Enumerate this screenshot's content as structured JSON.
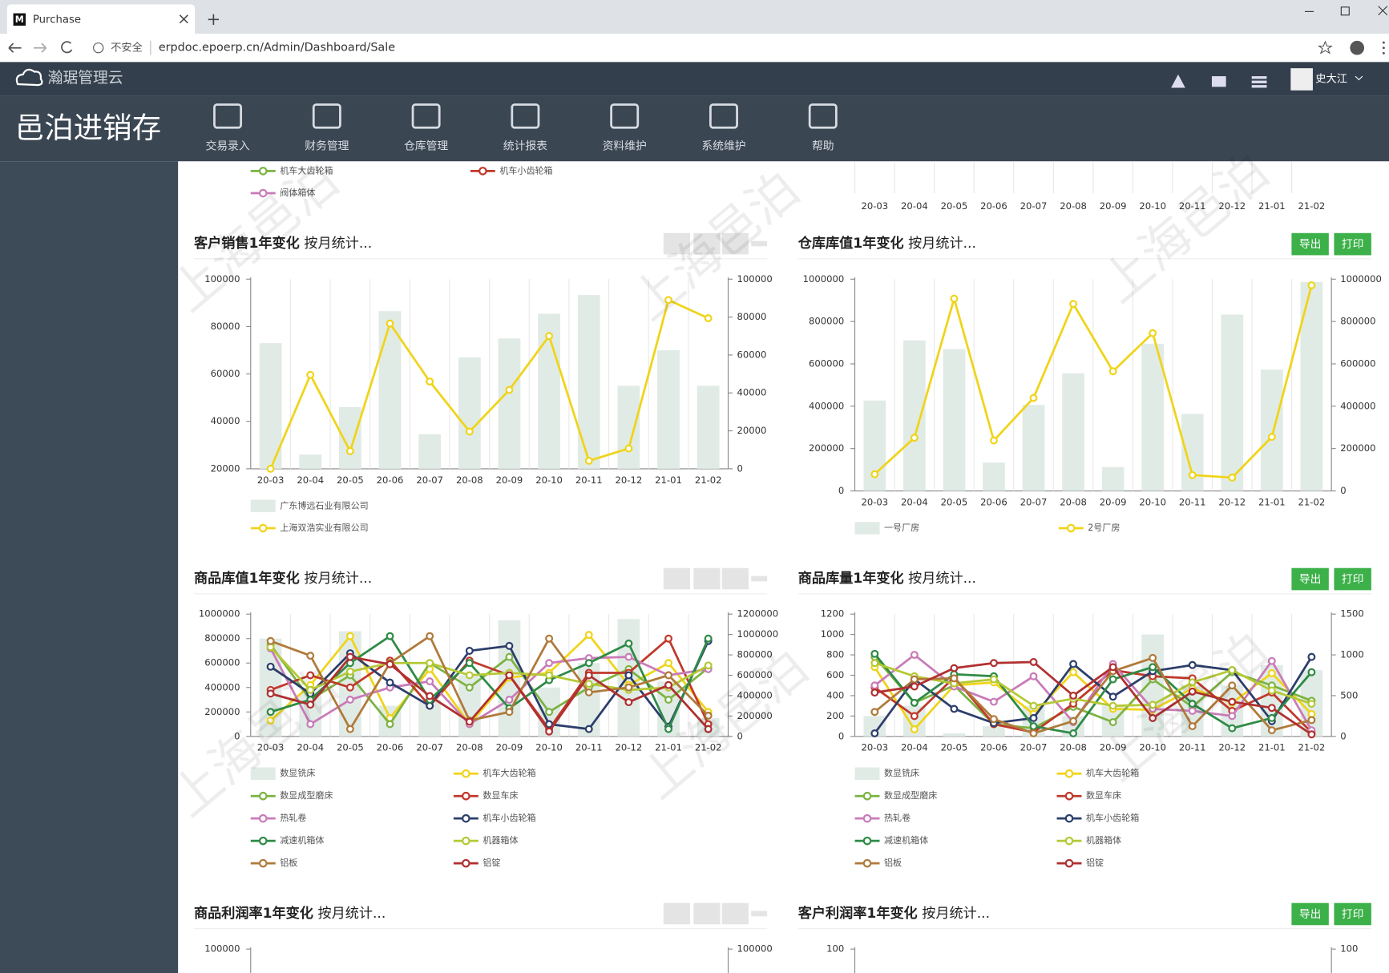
{
  "browser": {
    "tab_title": "Purchase",
    "security": "不安全",
    "url": "erpdoc.epoerp.cn/Admin/Dashboard/Sale"
  },
  "header": {
    "brand": "瀚琚管理云",
    "user": "史大江"
  },
  "app_title": "邑泊进销存",
  "nav": [
    "交易录入",
    "财务管理",
    "仓库管理",
    "统计报表",
    "资料维护",
    "系统维护",
    "帮助"
  ],
  "watermark": "上海邑泊",
  "buttons": [
    "导出",
    "打印"
  ],
  "top_fragment": {
    "legend": [
      {
        "name": "机车大齿轮箱",
        "color": "#7cb342"
      },
      {
        "name": "机车小齿轮箱",
        "color": "#c0392b"
      },
      {
        "name": "阀体箱体",
        "color": "#c97bb8"
      }
    ],
    "categories": [
      "20-03",
      "20-04",
      "20-05",
      "20-06",
      "20-07",
      "20-08",
      "20-09",
      "20-10",
      "20-11",
      "20-12",
      "21-01",
      "21-02"
    ]
  },
  "chart_data": [
    {
      "type": "combo",
      "title": "客户销售1年变化",
      "subtitle": "按月统计...",
      "grid": true,
      "categories": [
        "20-03",
        "20-04",
        "20-05",
        "20-06",
        "20-07",
        "20-08",
        "20-09",
        "20-10",
        "20-11",
        "20-12",
        "21-01",
        "21-02"
      ],
      "ylim": [
        20000,
        100000
      ],
      "yticks": [
        20000,
        40000,
        60000,
        80000,
        100000
      ],
      "y2lim": [
        0,
        100000
      ],
      "y2ticks": [
        0,
        20000,
        40000,
        60000,
        80000,
        100000
      ],
      "series": [
        {
          "name": "广东博远石业有限公司",
          "color": "#e1ebe6",
          "kind": "bar",
          "values": [
            73000,
            26000,
            46000,
            86500,
            34600,
            67000,
            75000,
            85400,
            93300,
            55000,
            70000,
            55000
          ]
        },
        {
          "name": "上海双浩实业有限公司",
          "color": "#f0d41a",
          "kind": "line",
          "axis": "y2",
          "values": [
            0,
            49500,
            9300,
            76600,
            46000,
            19600,
            41600,
            70000,
            4200,
            10700,
            89000,
            79400
          ]
        }
      ]
    },
    {
      "type": "combo",
      "title": "仓库库值1年变化",
      "subtitle": "按月统计...",
      "grid": true,
      "categories": [
        "20-03",
        "20-04",
        "20-05",
        "20-06",
        "20-07",
        "20-08",
        "20-09",
        "20-10",
        "20-11",
        "20-12",
        "21-01",
        "21-02"
      ],
      "ylim": [
        0,
        1000000
      ],
      "yticks": [
        0,
        200000,
        400000,
        600000,
        800000,
        1000000
      ],
      "y2lim": [
        0,
        1000000
      ],
      "y2ticks": [
        0,
        200000,
        400000,
        600000,
        800000,
        1000000
      ],
      "series": [
        {
          "name": "一号厂房",
          "color": "#e1ebe6",
          "kind": "bar",
          "values": [
            427000,
            711000,
            670000,
            134000,
            406000,
            556000,
            113000,
            695000,
            364000,
            833000,
            573000,
            987000
          ]
        },
        {
          "name": "2号厂房",
          "color": "#f0d41a",
          "kind": "line",
          "axis": "y2",
          "values": [
            79000,
            251000,
            908000,
            238000,
            439000,
            883000,
            565000,
            745000,
            75000,
            63000,
            255000,
            971000
          ]
        }
      ]
    },
    {
      "type": "combo",
      "title": "商品库值1年变化",
      "subtitle": "按月统计...",
      "grid": true,
      "categories": [
        "20-03",
        "20-04",
        "20-05",
        "20-06",
        "20-07",
        "20-08",
        "20-09",
        "20-10",
        "20-11",
        "20-12",
        "21-01",
        "21-02"
      ],
      "ylim": [
        0,
        1000000
      ],
      "yticks": [
        0,
        200000,
        400000,
        600000,
        800000,
        1000000
      ],
      "y2lim": [
        0,
        1200000
      ],
      "y2ticks": [
        0,
        200000,
        400000,
        600000,
        800000,
        1000000,
        1200000
      ],
      "series": [
        {
          "name": "数显铣床",
          "color": "#e1ebe6",
          "kind": "bar",
          "values": [
            800000,
            350000,
            860000,
            250000,
            300000,
            500000,
            950000,
            400000,
            600000,
            960000,
            450000,
            150000
          ]
        },
        {
          "name": "机车大齿轮箱",
          "color": "#f0d41a",
          "kind": "line",
          "values": [
            130000,
            420000,
            820000,
            150000,
            550000,
            100000,
            480000,
            520000,
            830000,
            420000,
            600000,
            200000
          ]
        },
        {
          "name": "数显成型磨床",
          "color": "#7cb342",
          "kind": "line",
          "values": [
            750000,
            300000,
            500000,
            100000,
            600000,
            400000,
            650000,
            200000,
            400000,
            550000,
            300000,
            560000
          ]
        },
        {
          "name": "数显车床",
          "color": "#c0392b",
          "kind": "line",
          "values": [
            380000,
            500000,
            400000,
            620000,
            250000,
            620000,
            500000,
            60000,
            520000,
            520000,
            800000,
            100000
          ]
        },
        {
          "name": "热轧卷",
          "color": "#c97bb8",
          "kind": "line",
          "values": [
            720000,
            100000,
            300000,
            400000,
            450000,
            100000,
            300000,
            600000,
            640000,
            650000,
            500000,
            550000
          ]
        },
        {
          "name": "机车小齿轮箱",
          "color": "#2c3e6b",
          "kind": "line",
          "values": [
            570000,
            350000,
            680000,
            440000,
            250000,
            700000,
            740000,
            100000,
            60000,
            500000,
            80000,
            780000
          ]
        },
        {
          "name": "减速机箱体",
          "color": "#2e8b46",
          "kind": "line",
          "values": [
            200000,
            300000,
            600000,
            820000,
            300000,
            600000,
            230000,
            460000,
            600000,
            760000,
            60000,
            800000
          ]
        },
        {
          "name": "机器箱体",
          "color": "#b5c935",
          "kind": "line",
          "values": [
            730000,
            380000,
            530000,
            600000,
            600000,
            500000,
            520000,
            500000,
            430000,
            380000,
            400000,
            580000
          ]
        },
        {
          "name": "铝板",
          "color": "#b07a3a",
          "kind": "line",
          "values": [
            780000,
            660000,
            60000,
            600000,
            820000,
            130000,
            200000,
            800000,
            360000,
            400000,
            500000,
            170000
          ]
        },
        {
          "name": "铝锭",
          "color": "#b03030",
          "kind": "line",
          "values": [
            350000,
            260000,
            650000,
            590000,
            330000,
            120000,
            500000,
            40000,
            500000,
            280000,
            420000,
            60000
          ]
        }
      ]
    },
    {
      "type": "combo",
      "title": "商品库量1年变化",
      "subtitle": "按月统计...",
      "grid": true,
      "categories": [
        "20-03",
        "20-04",
        "20-05",
        "20-06",
        "20-07",
        "20-08",
        "20-09",
        "20-10",
        "20-11",
        "20-12",
        "21-01",
        "21-02"
      ],
      "ylim": [
        0,
        1200
      ],
      "yticks": [
        0,
        200,
        400,
        600,
        800,
        1000,
        1200
      ],
      "y2lim": [
        0,
        1500
      ],
      "y2ticks": [
        0,
        500,
        1000,
        1500
      ],
      "series": [
        {
          "name": "数显铣床",
          "color": "#e1ebe6",
          "kind": "bar",
          "values": [
            200,
            300,
            30,
            100,
            300,
            200,
            300,
            1000,
            500,
            500,
            700,
            650
          ]
        },
        {
          "name": "机车大齿轮箱",
          "color": "#f0d41a",
          "kind": "line",
          "values": [
            680,
            70,
            500,
            530,
            220,
            630,
            270,
            260,
            470,
            330,
            620,
            220
          ]
        },
        {
          "name": "数显成型磨床",
          "color": "#7cb342",
          "kind": "line",
          "values": [
            780,
            330,
            500,
            120,
            80,
            290,
            140,
            560,
            290,
            630,
            500,
            350
          ]
        },
        {
          "name": "数显车床",
          "color": "#c0392b",
          "kind": "line",
          "values": [
            480,
            200,
            580,
            120,
            40,
            320,
            650,
            590,
            570,
            250,
            430,
            40
          ]
        },
        {
          "name": "热轧卷",
          "color": "#c97bb8",
          "kind": "line",
          "values": [
            500,
            800,
            490,
            340,
            590,
            140,
            710,
            270,
            250,
            200,
            740,
            60
          ]
        },
        {
          "name": "机车小齿轮箱",
          "color": "#2c3e6b",
          "kind": "line",
          "values": [
            30,
            560,
            270,
            130,
            180,
            710,
            390,
            640,
            700,
            650,
            150,
            780
          ]
        },
        {
          "name": "减速机箱体",
          "color": "#2e8b46",
          "kind": "line",
          "values": [
            810,
            330,
            610,
            590,
            100,
            30,
            560,
            680,
            320,
            80,
            180,
            630
          ]
        },
        {
          "name": "机器箱体",
          "color": "#b5c935",
          "kind": "line",
          "values": [
            720,
            590,
            520,
            560,
            300,
            370,
            300,
            310,
            530,
            650,
            450,
            320
          ]
        },
        {
          "name": "铝板",
          "color": "#b07a3a",
          "kind": "line",
          "values": [
            240,
            560,
            570,
            170,
            30,
            150,
            640,
            770,
            100,
            500,
            60,
            160
          ]
        },
        {
          "name": "铝锭",
          "color": "#b03030",
          "kind": "line",
          "values": [
            430,
            490,
            670,
            720,
            730,
            400,
            680,
            180,
            440,
            340,
            280,
            20
          ]
        }
      ]
    },
    {
      "type": "combo",
      "title": "商品利润率1年变化",
      "subtitle": "按月统计...",
      "yticks": [
        100000
      ],
      "y2ticks": [
        100000
      ]
    },
    {
      "type": "combo",
      "title": "客户利润率1年变化",
      "subtitle": "按月统计...",
      "yticks": [
        100
      ],
      "y2ticks": [
        100
      ]
    }
  ]
}
